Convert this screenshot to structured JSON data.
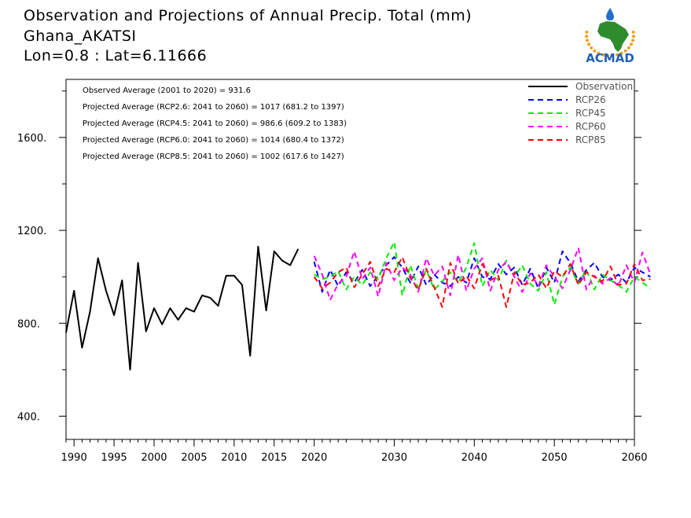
{
  "title_lines": [
    "Observation and Projections of Annual Precip. Total (mm)",
    "Ghana_AKATSI",
    "Lon=0.8 : Lat=6.11666"
  ],
  "logo": {
    "text": "ACMAD",
    "colors": {
      "africa": "#2e8b2e",
      "sun": "#f0a020",
      "drop": "#1f6fd0",
      "text": "#1f5fb8"
    }
  },
  "chart_data": {
    "type": "line",
    "xlim": [
      1989,
      2060
    ],
    "ylim": [
      300,
      1850
    ],
    "x_ticks": [
      1990,
      1995,
      2000,
      2005,
      2010,
      2015,
      2020,
      2030,
      2040,
      2050,
      2060
    ],
    "y_ticks": [
      400,
      800,
      1200,
      1600
    ],
    "y_tick_labels": [
      "400.",
      "800.",
      "1200.",
      "1600."
    ],
    "annotations": [
      "Observed Average (2001 to 2020) = 931.6",
      "Projected Average (RCP2.6: 2041 to 2060) = 1017 (681.2 to 1397)",
      "Projected Average (RCP4.5: 2041 to 2060) = 986.6 (609.2 to 1383)",
      "Projected Average (RCP6.0: 2041 to 2060) = 1014 (680.4 to 1372)",
      "Projected Average (RCP8.5: 2041 to 2060) = 1002 (617.6 to 1427)"
    ],
    "legend_position": "top-right",
    "series": [
      {
        "name": "Observation",
        "color": "#000000",
        "dashed": false,
        "x_start": 1989,
        "values": [
          760,
          940,
          695,
          850,
          1080,
          940,
          835,
          985,
          600,
          1060,
          765,
          865,
          795,
          865,
          815,
          865,
          850,
          920,
          910,
          875,
          1005,
          1005,
          965,
          660,
          1130,
          855,
          1110,
          1070,
          1050,
          1120
        ]
      },
      {
        "name": "RCP26",
        "color": "#0000ff",
        "dashed": true,
        "x_start": 2020,
        "values": [
          1065,
          935,
          1030,
          960,
          1020,
          975,
          1030,
          960,
          1005,
          1050,
          1085,
          1040,
          975,
          1045,
          965,
          1010,
          975,
          960,
          1000,
          975,
          1080,
          1000,
          990,
          1055,
          1010,
          1040,
          965,
          1035,
          950,
          1040,
          975,
          1110,
          1060,
          980,
          1030,
          1060,
          1000,
          985,
          1010,
          975,
          1040,
          1020,
          1000
        ]
      },
      {
        "name": "RCP45",
        "color": "#00ee00",
        "dashed": true,
        "x_start": 2020,
        "values": [
          1010,
          990,
          1000,
          1025,
          945,
          1000,
          965,
          1020,
          990,
          1080,
          1150,
          920,
          1050,
          950,
          1030,
          945,
          980,
          1020,
          975,
          1040,
          1145,
          960,
          1030,
          985,
          1070,
          1000,
          1050,
          970,
          940,
          1020,
          880,
          1000,
          1040,
          970,
          1030,
          945,
          1010,
          985,
          965,
          935,
          1000,
          975,
          950
        ]
      },
      {
        "name": "RCP60",
        "color": "#ff00ff",
        "dashed": true,
        "x_start": 2020,
        "values": [
          1090,
          1010,
          900,
          970,
          1000,
          1110,
          990,
          1040,
          915,
          1060,
          985,
          1040,
          1010,
          935,
          1080,
          1005,
          1045,
          920,
          1095,
          940,
          1035,
          1080,
          940,
          1030,
          1065,
          1000,
          935,
          1015,
          960,
          1050,
          1000,
          950,
          1030,
          1125,
          945,
          1005,
          970,
          995,
          960,
          1050,
          975,
          1105,
          1010
        ]
      },
      {
        "name": "RCP85",
        "color": "#ff0000",
        "dashed": true,
        "x_start": 2020,
        "values": [
          1000,
          950,
          975,
          1020,
          1040,
          955,
          1010,
          1065,
          960,
          1035,
          1020,
          1085,
          995,
          945,
          1035,
          955,
          870,
          1060,
          970,
          1005,
          950,
          1055,
          985,
          1005,
          870,
          1020,
          965,
          975,
          1010,
          950,
          1025,
          1000,
          1055,
          965,
          1020,
          1000,
          980,
          1045,
          965,
          970,
          1055,
          985,
          990
        ]
      }
    ]
  }
}
